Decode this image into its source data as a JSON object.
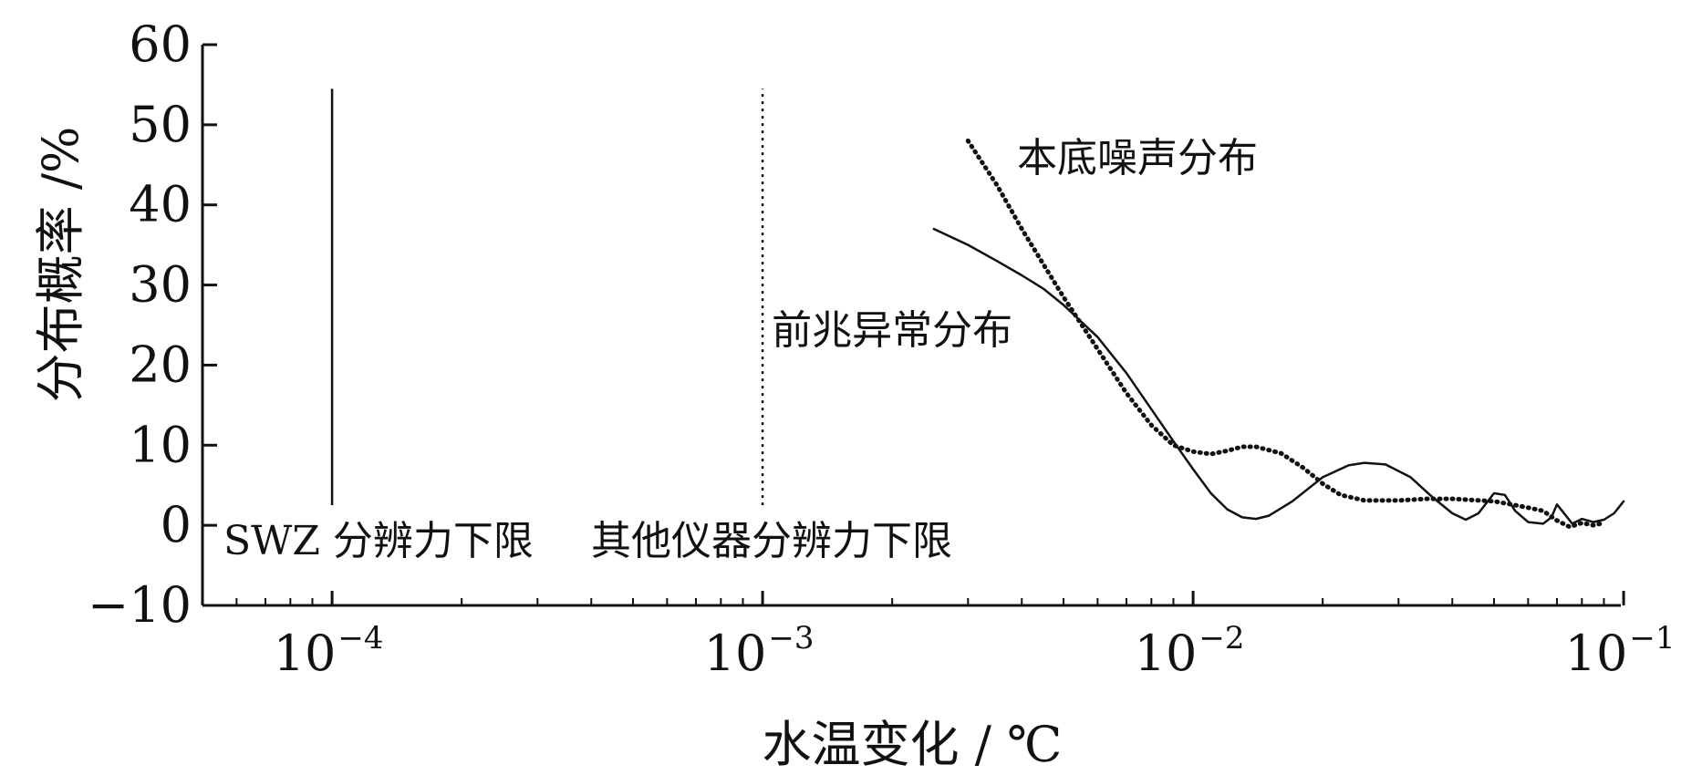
{
  "chart_data": {
    "type": "line",
    "title": "",
    "xlabel": "水温变化 / ℃",
    "ylabel": "分布概率 /%",
    "x_scale": "log",
    "xlim": [
      5e-05,
      0.1
    ],
    "ylim": [
      -10,
      60
    ],
    "y_ticks": [
      "−10",
      "0",
      "10",
      "20",
      "30",
      "40",
      "50",
      "60"
    ],
    "x_ticks": [
      {
        "base": "10",
        "exp": "−4",
        "value": 0.0001
      },
      {
        "base": "10",
        "exp": "−3",
        "value": 0.001
      },
      {
        "base": "10",
        "exp": "−2",
        "value": 0.01
      },
      {
        "base": "10",
        "exp": "−1",
        "value": 0.1
      }
    ],
    "grid": false,
    "legend": "none",
    "series": [
      {
        "name": "前兆异常分布",
        "style": "solid",
        "points": [
          [
            0.0025,
            37
          ],
          [
            0.003,
            35
          ],
          [
            0.0035,
            33
          ],
          [
            0.004,
            31.2
          ],
          [
            0.0045,
            29.5
          ],
          [
            0.005,
            27.5
          ],
          [
            0.006,
            23.5
          ],
          [
            0.007,
            19
          ],
          [
            0.008,
            14.5
          ],
          [
            0.009,
            10.5
          ],
          [
            0.01,
            7
          ],
          [
            0.011,
            4
          ],
          [
            0.012,
            2
          ],
          [
            0.013,
            1
          ],
          [
            0.014,
            0.8
          ],
          [
            0.015,
            1.2
          ],
          [
            0.017,
            3
          ],
          [
            0.02,
            6
          ],
          [
            0.023,
            7.5
          ],
          [
            0.025,
            7.8
          ],
          [
            0.028,
            7.6
          ],
          [
            0.032,
            6
          ],
          [
            0.036,
            3.5
          ],
          [
            0.04,
            1.5
          ],
          [
            0.043,
            0.7
          ],
          [
            0.046,
            1.5
          ],
          [
            0.05,
            4
          ],
          [
            0.053,
            3.8
          ],
          [
            0.056,
            1.8
          ],
          [
            0.06,
            0.4
          ],
          [
            0.065,
            0.2
          ],
          [
            0.068,
            1
          ],
          [
            0.07,
            2.6
          ],
          [
            0.072,
            1.8
          ],
          [
            0.076,
            0.2
          ],
          [
            0.08,
            0.8
          ],
          [
            0.085,
            0.4
          ],
          [
            0.09,
            0.7
          ],
          [
            0.095,
            1.5
          ],
          [
            0.1,
            3
          ]
        ]
      },
      {
        "name": "本底噪声分布",
        "style": "dotted",
        "points": [
          [
            0.003,
            48
          ],
          [
            0.0035,
            42.5
          ],
          [
            0.004,
            37
          ],
          [
            0.0045,
            32.5
          ],
          [
            0.005,
            28.5
          ],
          [
            0.006,
            22
          ],
          [
            0.007,
            16.5
          ],
          [
            0.008,
            12.5
          ],
          [
            0.009,
            10
          ],
          [
            0.01,
            9.2
          ],
          [
            0.011,
            8.9
          ],
          [
            0.012,
            9.3
          ],
          [
            0.013,
            9.8
          ],
          [
            0.014,
            9.8
          ],
          [
            0.016,
            9
          ],
          [
            0.018,
            7.2
          ],
          [
            0.02,
            5.2
          ],
          [
            0.022,
            3.8
          ],
          [
            0.025,
            3.1
          ],
          [
            0.03,
            3.1
          ],
          [
            0.035,
            3.3
          ],
          [
            0.04,
            3.3
          ],
          [
            0.05,
            3
          ],
          [
            0.055,
            2.6
          ],
          [
            0.06,
            2.2
          ],
          [
            0.065,
            1.8
          ],
          [
            0.07,
            0.6
          ],
          [
            0.075,
            -0.2
          ],
          [
            0.08,
            0.3
          ],
          [
            0.085,
            0
          ],
          [
            0.09,
            0.3
          ]
        ]
      }
    ],
    "reference_lines": [
      {
        "label": "SWZ 分辨力下限",
        "x": 0.0001,
        "y_range": [
          2.5,
          54.5
        ],
        "style": "solid"
      },
      {
        "label": "其他仪器分辨力下限",
        "x": 0.001,
        "y_range": [
          2.5,
          54.5
        ],
        "style": "dotted"
      }
    ],
    "annotations": [
      {
        "text": "本底噪声分布",
        "x": 0.0039,
        "y": 46
      },
      {
        "text": "前兆异常分布",
        "x": 0.00105,
        "y": 24.5
      }
    ]
  }
}
